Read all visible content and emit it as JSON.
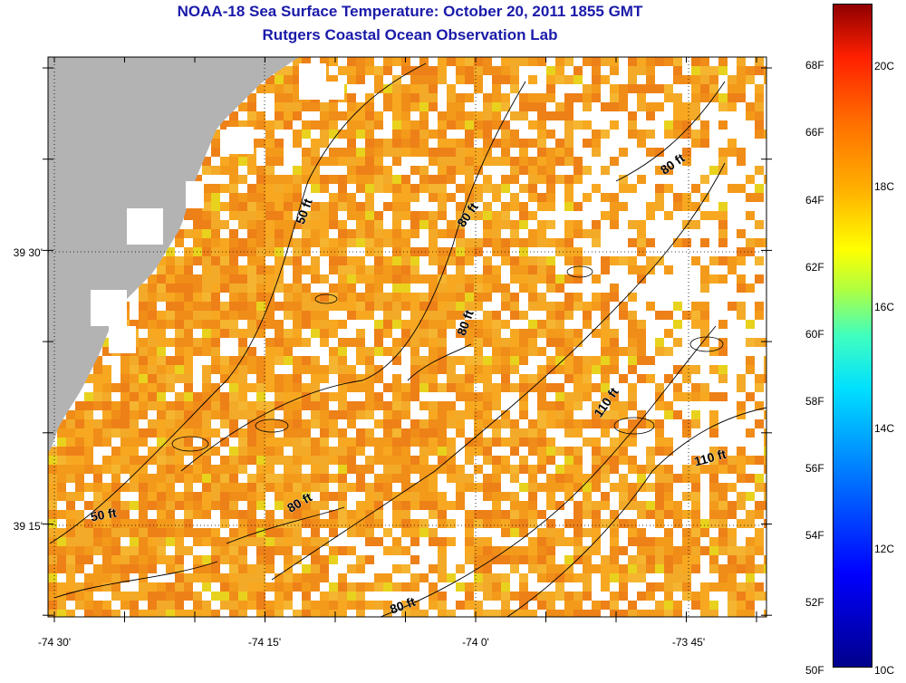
{
  "title": {
    "line1": "NOAA-18 Sea Surface Temperature:  October 20, 2011 1855 GMT",
    "line2": "Rutgers Coastal Ocean Observation Lab",
    "color": "#1a1aaa"
  },
  "map": {
    "lon_ticks": [
      {
        "label": "-74 30'",
        "value": -74.5
      },
      {
        "label": "-74 15'",
        "value": -74.25
      },
      {
        "label": "-74 0'",
        "value": -74.0
      },
      {
        "label": "-73 45'",
        "value": -73.75
      }
    ],
    "lat_ticks": [
      {
        "label": "39 30'",
        "value": 39.5
      },
      {
        "label": "39 15'",
        "value": 39.25
      }
    ],
    "land_color": "#b3b3b3",
    "ocean_palette": [
      "#f7a820",
      "#f49a1a",
      "#f08c18",
      "#ee8018",
      "#f3aa28",
      "#e9d21d",
      "#f5b530"
    ],
    "contour_labels": [
      "50 ft",
      "80 ft",
      "80 ft",
      "80 ft",
      "110 ft",
      "110 ft",
      "50 ft",
      "80 ft",
      "80 ft"
    ]
  },
  "colorbar": {
    "f_labels": [
      "68F",
      "66F",
      "64F",
      "62F",
      "60F",
      "58F",
      "56F",
      "54F",
      "52F",
      "50F"
    ],
    "c_labels": [
      "20C",
      "18C",
      "16C",
      "14C",
      "12C",
      "10C"
    ]
  }
}
